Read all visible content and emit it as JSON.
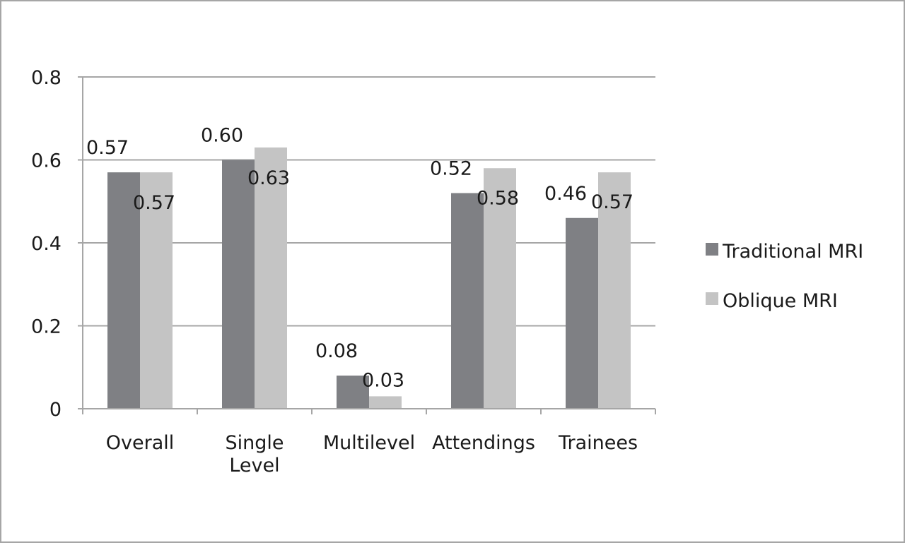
{
  "chart_data": {
    "type": "bar",
    "categories": [
      [
        "Overall"
      ],
      [
        "Single",
        "Level"
      ],
      [
        "Multilevel"
      ],
      [
        "Attendings"
      ],
      [
        "Trainees"
      ]
    ],
    "series": [
      {
        "name": "Traditional MRI",
        "color": "#7f8084",
        "values": [
          0.57,
          0.6,
          0.08,
          0.52,
          0.46
        ],
        "labels": [
          "0.57",
          "0.60",
          "0.08",
          "0.52",
          "0.46"
        ]
      },
      {
        "name": "Oblique MRI",
        "color": "#c4c4c4",
        "values": [
          0.57,
          0.63,
          0.03,
          0.58,
          0.57
        ],
        "labels": [
          "0.57",
          "0.63",
          "0.03",
          "0.58",
          "0.57"
        ]
      }
    ],
    "y_ticks": [
      0,
      0.2,
      0.4,
      0.6,
      0.8
    ],
    "y_tick_labels": [
      "0",
      "0.2",
      "0.4",
      "0.6",
      "0.8"
    ],
    "ylim": [
      0,
      0.8
    ],
    "title": "",
    "xlabel": "",
    "ylabel": "",
    "grid": true,
    "legend_position": "right",
    "gridline_color": "#a6a6a6",
    "axis_color": "#a6a6a6"
  }
}
